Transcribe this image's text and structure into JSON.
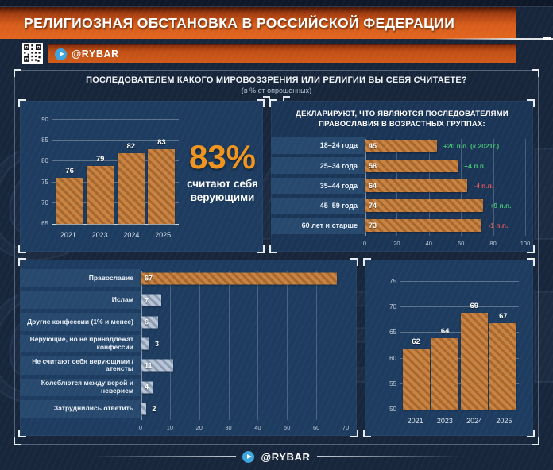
{
  "header": {
    "title": "РЕЛИГИОЗНАЯ ОБСТАНОВКА В РОССИЙСКОЙ ФЕДЕРАЦИИ",
    "channel": "@RYBAR"
  },
  "survey": {
    "question": "ПОСЛЕДОВАТЕЛЕМ КАКОГО МИРОВОЗЗРЕНИЯ ИЛИ РЕЛИГИИ ВЫ СЕБЯ СЧИТАЕТЕ?",
    "note": "(в % от опрошенных)"
  },
  "highlight": {
    "value": "83%",
    "caption": "считают себя верующими"
  },
  "watermark": "@RYBAR",
  "footer": {
    "channel": "@RYBAR"
  },
  "colors": {
    "banner_orange": "#d85d1c",
    "accent_orange": "#f0941f",
    "bar_orange": "#c9823f",
    "bar_gray": "#b7c5d6",
    "panel_blue": "#1d3c60",
    "label_strip_blue": "#27496e",
    "green": "#45bd72",
    "red": "#e05555"
  },
  "chart_data": [
    {
      "id": "believers-trend",
      "type": "bar",
      "title": "",
      "categories": [
        "2021",
        "2023",
        "2024",
        "2025"
      ],
      "values": [
        76,
        79,
        82,
        83
      ],
      "ylim": [
        65,
        90
      ],
      "yticks": [
        65,
        70,
        75,
        80,
        85,
        90
      ],
      "grid": true
    },
    {
      "id": "orthodox-by-age",
      "type": "hbar",
      "title": "ДЕКЛАРИРУЮТ, ЧТО ЯВЛЯЮТСЯ ПОСЛЕДОВАТЕЛЯМИ ПРАВОСЛАВИЯ В ВОЗРАСТНЫХ ГРУППАХ:",
      "categories": [
        "18–24 года",
        "25–34 года",
        "35–44 года",
        "45–59 года",
        "60 лет и старше"
      ],
      "values": [
        45,
        58,
        64,
        74,
        73
      ],
      "annotations": [
        "+20 п.п. (к 2021г.)",
        "+4 п.п.",
        "-4 п.п.",
        "+9 п.п.",
        "-1 п.п."
      ],
      "annotation_colors": [
        "green",
        "green",
        "red",
        "green",
        "red"
      ],
      "xlim": [
        0,
        100
      ],
      "xticks": [
        0,
        20,
        40,
        60,
        80,
        100
      ],
      "grid": true
    },
    {
      "id": "confessions",
      "type": "hbar",
      "title": "",
      "categories": [
        "Православие",
        "Ислам",
        "Другие конфессии (1% и менее)",
        "Верующие, но не принадлежат конфессии",
        "Не считают себя верующими / атеисты",
        "Колеблются между верой и неверием",
        "Затруднились ответить"
      ],
      "values": [
        67,
        7,
        6,
        3,
        11,
        4,
        2
      ],
      "bar_colors": [
        "orange",
        "gray",
        "gray",
        "gray",
        "gray",
        "gray",
        "gray"
      ],
      "xlim": [
        0,
        70
      ],
      "xticks": [
        0,
        10,
        20,
        30,
        40,
        50,
        60,
        70
      ],
      "grid": true
    },
    {
      "id": "orthodox-trend",
      "type": "bar",
      "title": "",
      "categories": [
        "2021",
        "2023",
        "2024",
        "2025"
      ],
      "values": [
        62,
        64,
        69,
        67
      ],
      "ylim": [
        50,
        75
      ],
      "yticks": [
        50,
        55,
        60,
        65,
        70,
        75
      ],
      "grid": true
    }
  ]
}
